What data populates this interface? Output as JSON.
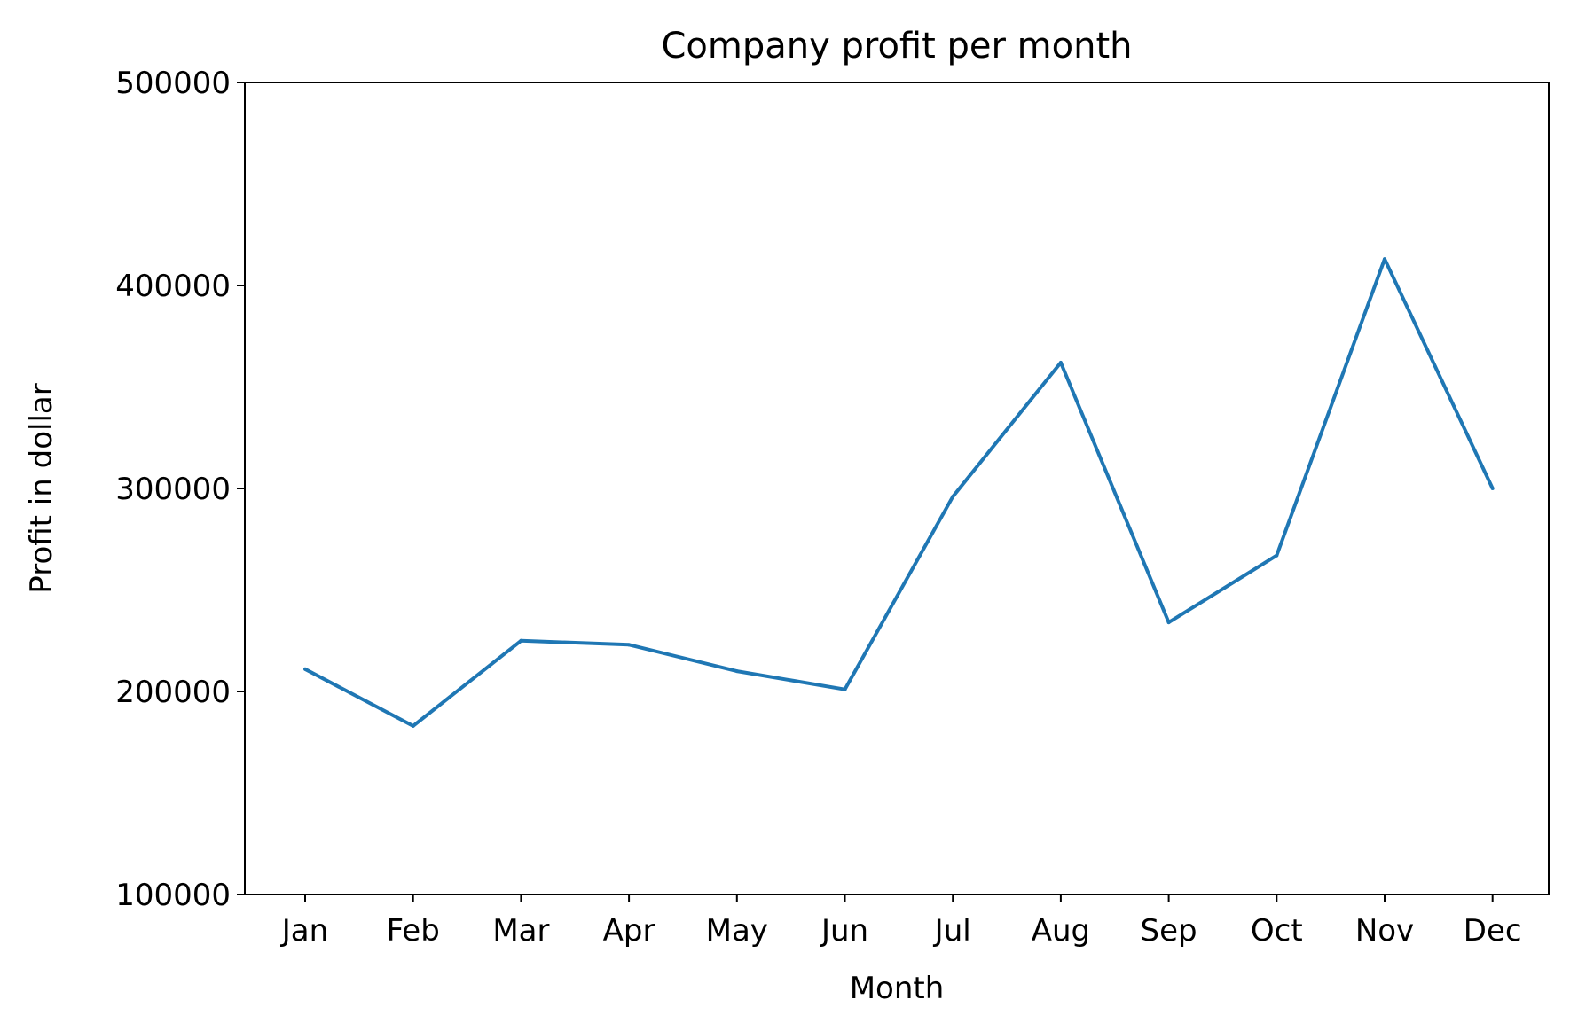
{
  "chart_data": {
    "type": "line",
    "title": "Company profit per month",
    "xlabel": "Month",
    "ylabel": "Profit in dollar",
    "categories": [
      "Jan",
      "Feb",
      "Mar",
      "Apr",
      "May",
      "Jun",
      "Jul",
      "Aug",
      "Sep",
      "Oct",
      "Nov",
      "Dec"
    ],
    "series": [
      {
        "name": "Profit",
        "color": "#1f77b4",
        "values": [
          211000,
          183000,
          225000,
          223000,
          210000,
          201000,
          296000,
          362000,
          234000,
          267000,
          413000,
          300000
        ]
      }
    ],
    "ylim": [
      100000,
      500000
    ],
    "yticks": [
      100000,
      200000,
      300000,
      400000,
      500000
    ],
    "ytick_labels": [
      "100000",
      "200000",
      "300000",
      "400000",
      "500000"
    ],
    "grid": false,
    "legend": "none"
  }
}
